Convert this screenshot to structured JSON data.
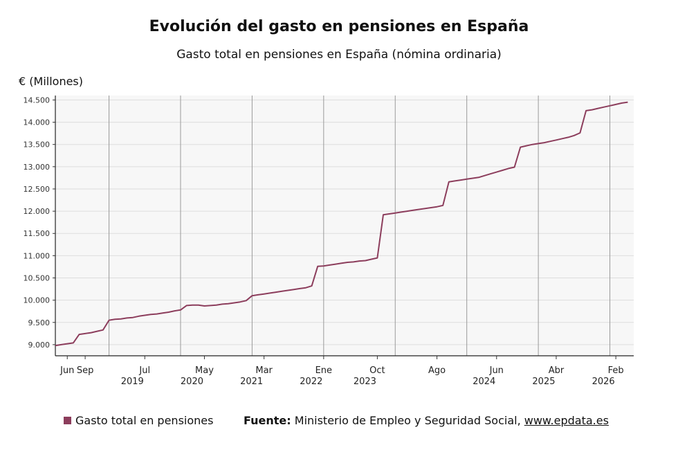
{
  "title": "Evolución del gasto en pensiones en España",
  "subtitle": "Gasto total en pensiones en España (nómina ordinaria)",
  "source": {
    "label": "Fuente:",
    "text": " Ministerio de Empleo y Seguridad Social, ",
    "link": "www.epdata.es"
  },
  "colors": {
    "series": "#8c3d5c",
    "plot_bg": "#f7f7f7",
    "grid": "#dddddd",
    "vline": "#999999"
  },
  "chart_data": {
    "type": "line",
    "ylabel": "€ (Millones)",
    "ylim": [
      8750,
      14600
    ],
    "yticks": [
      {
        "value": 9000,
        "label": "9.000"
      },
      {
        "value": 9500,
        "label": "9.500"
      },
      {
        "value": 10000,
        "label": "10.000"
      },
      {
        "value": 10500,
        "label": "10.500"
      },
      {
        "value": 11000,
        "label": "11.000"
      },
      {
        "value": 11500,
        "label": "11.500"
      },
      {
        "value": 12000,
        "label": "12.000"
      },
      {
        "value": 12500,
        "label": "12.500"
      },
      {
        "value": 13000,
        "label": "13.000"
      },
      {
        "value": 13500,
        "label": "13.500"
      },
      {
        "value": 14000,
        "label": "14.000"
      },
      {
        "value": 14500,
        "label": "14.500"
      }
    ],
    "x_start": "2018-04",
    "xlim": [
      "2018-04",
      "2026-05"
    ],
    "xticks": [
      {
        "date": "2018-06",
        "label": "Jun",
        "year": ""
      },
      {
        "date": "2018-09",
        "label": "Sep",
        "year": ""
      },
      {
        "date": "2019-07",
        "label": "Jul",
        "year": "2019"
      },
      {
        "date": "2020-05",
        "label": "May",
        "year": "2020"
      },
      {
        "date": "2021-03",
        "label": "Mar",
        "year": "2021"
      },
      {
        "date": "2022-01",
        "label": "Ene",
        "year": "2022"
      },
      {
        "date": "2022-10",
        "label": "Oct",
        "year": "2023"
      },
      {
        "date": "2023-08",
        "label": "Ago",
        "year": ""
      },
      {
        "date": "2024-06",
        "label": "Jun",
        "year": "2024"
      },
      {
        "date": "2025-04",
        "label": "Abr",
        "year": "2025"
      },
      {
        "date": "2026-02",
        "label": "Feb",
        "year": "2026"
      }
    ],
    "year_lines": [
      "2019-01",
      "2020-01",
      "2021-01",
      "2022-01",
      "2023-01",
      "2024-01",
      "2025-01",
      "2026-01"
    ],
    "series": [
      {
        "name": "Gasto total en pensiones",
        "points": [
          [
            "2018-04",
            8980
          ],
          [
            "2018-05",
            9000
          ],
          [
            "2018-06",
            9020
          ],
          [
            "2018-07",
            9040
          ],
          [
            "2018-08",
            9230
          ],
          [
            "2018-09",
            9250
          ],
          [
            "2018-10",
            9270
          ],
          [
            "2018-11",
            9300
          ],
          [
            "2018-12",
            9330
          ],
          [
            "2019-01",
            9550
          ],
          [
            "2019-02",
            9570
          ],
          [
            "2019-03",
            9580
          ],
          [
            "2019-04",
            9600
          ],
          [
            "2019-05",
            9610
          ],
          [
            "2019-06",
            9640
          ],
          [
            "2019-07",
            9660
          ],
          [
            "2019-08",
            9680
          ],
          [
            "2019-09",
            9690
          ],
          [
            "2019-10",
            9710
          ],
          [
            "2019-11",
            9730
          ],
          [
            "2019-12",
            9760
          ],
          [
            "2020-01",
            9780
          ],
          [
            "2020-02",
            9880
          ],
          [
            "2020-03",
            9890
          ],
          [
            "2020-04",
            9890
          ],
          [
            "2020-05",
            9870
          ],
          [
            "2020-06",
            9880
          ],
          [
            "2020-07",
            9890
          ],
          [
            "2020-08",
            9910
          ],
          [
            "2020-09",
            9920
          ],
          [
            "2020-10",
            9940
          ],
          [
            "2020-11",
            9960
          ],
          [
            "2020-12",
            9990
          ],
          [
            "2021-01",
            10100
          ],
          [
            "2021-02",
            10120
          ],
          [
            "2021-03",
            10140
          ],
          [
            "2021-04",
            10160
          ],
          [
            "2021-05",
            10180
          ],
          [
            "2021-06",
            10200
          ],
          [
            "2021-07",
            10220
          ],
          [
            "2021-08",
            10240
          ],
          [
            "2021-09",
            10260
          ],
          [
            "2021-10",
            10280
          ],
          [
            "2021-11",
            10320
          ],
          [
            "2021-12",
            10760
          ],
          [
            "2022-01",
            10770
          ],
          [
            "2022-02",
            10790
          ],
          [
            "2022-03",
            10810
          ],
          [
            "2022-04",
            10830
          ],
          [
            "2022-05",
            10850
          ],
          [
            "2022-06",
            10860
          ],
          [
            "2022-07",
            10880
          ],
          [
            "2022-08",
            10890
          ],
          [
            "2022-09",
            10920
          ],
          [
            "2022-10",
            10950
          ],
          [
            "2022-11",
            11920
          ],
          [
            "2022-12",
            11940
          ],
          [
            "2023-01",
            11960
          ],
          [
            "2023-02",
            11980
          ],
          [
            "2023-03",
            12000
          ],
          [
            "2023-04",
            12020
          ],
          [
            "2023-05",
            12040
          ],
          [
            "2023-06",
            12060
          ],
          [
            "2023-07",
            12080
          ],
          [
            "2023-08",
            12100
          ],
          [
            "2023-09",
            12130
          ],
          [
            "2023-10",
            12660
          ],
          [
            "2023-11",
            12680
          ],
          [
            "2023-12",
            12700
          ],
          [
            "2024-01",
            12720
          ],
          [
            "2024-02",
            12740
          ],
          [
            "2024-03",
            12760
          ],
          [
            "2024-04",
            12800
          ],
          [
            "2024-05",
            12840
          ],
          [
            "2024-06",
            12880
          ],
          [
            "2024-07",
            12920
          ],
          [
            "2024-08",
            12960
          ],
          [
            "2024-09",
            12990
          ],
          [
            "2024-10",
            13440
          ],
          [
            "2024-11",
            13470
          ],
          [
            "2024-12",
            13500
          ],
          [
            "2025-01",
            13520
          ],
          [
            "2025-02",
            13540
          ],
          [
            "2025-03",
            13570
          ],
          [
            "2025-04",
            13600
          ],
          [
            "2025-05",
            13630
          ],
          [
            "2025-06",
            13660
          ],
          [
            "2025-07",
            13700
          ],
          [
            "2025-08",
            13760
          ],
          [
            "2025-09",
            14260
          ],
          [
            "2025-10",
            14280
          ],
          [
            "2025-11",
            14310
          ],
          [
            "2025-12",
            14340
          ],
          [
            "2026-01",
            14370
          ],
          [
            "2026-02",
            14400
          ],
          [
            "2026-03",
            14430
          ],
          [
            "2026-04",
            14450
          ]
        ]
      }
    ]
  }
}
